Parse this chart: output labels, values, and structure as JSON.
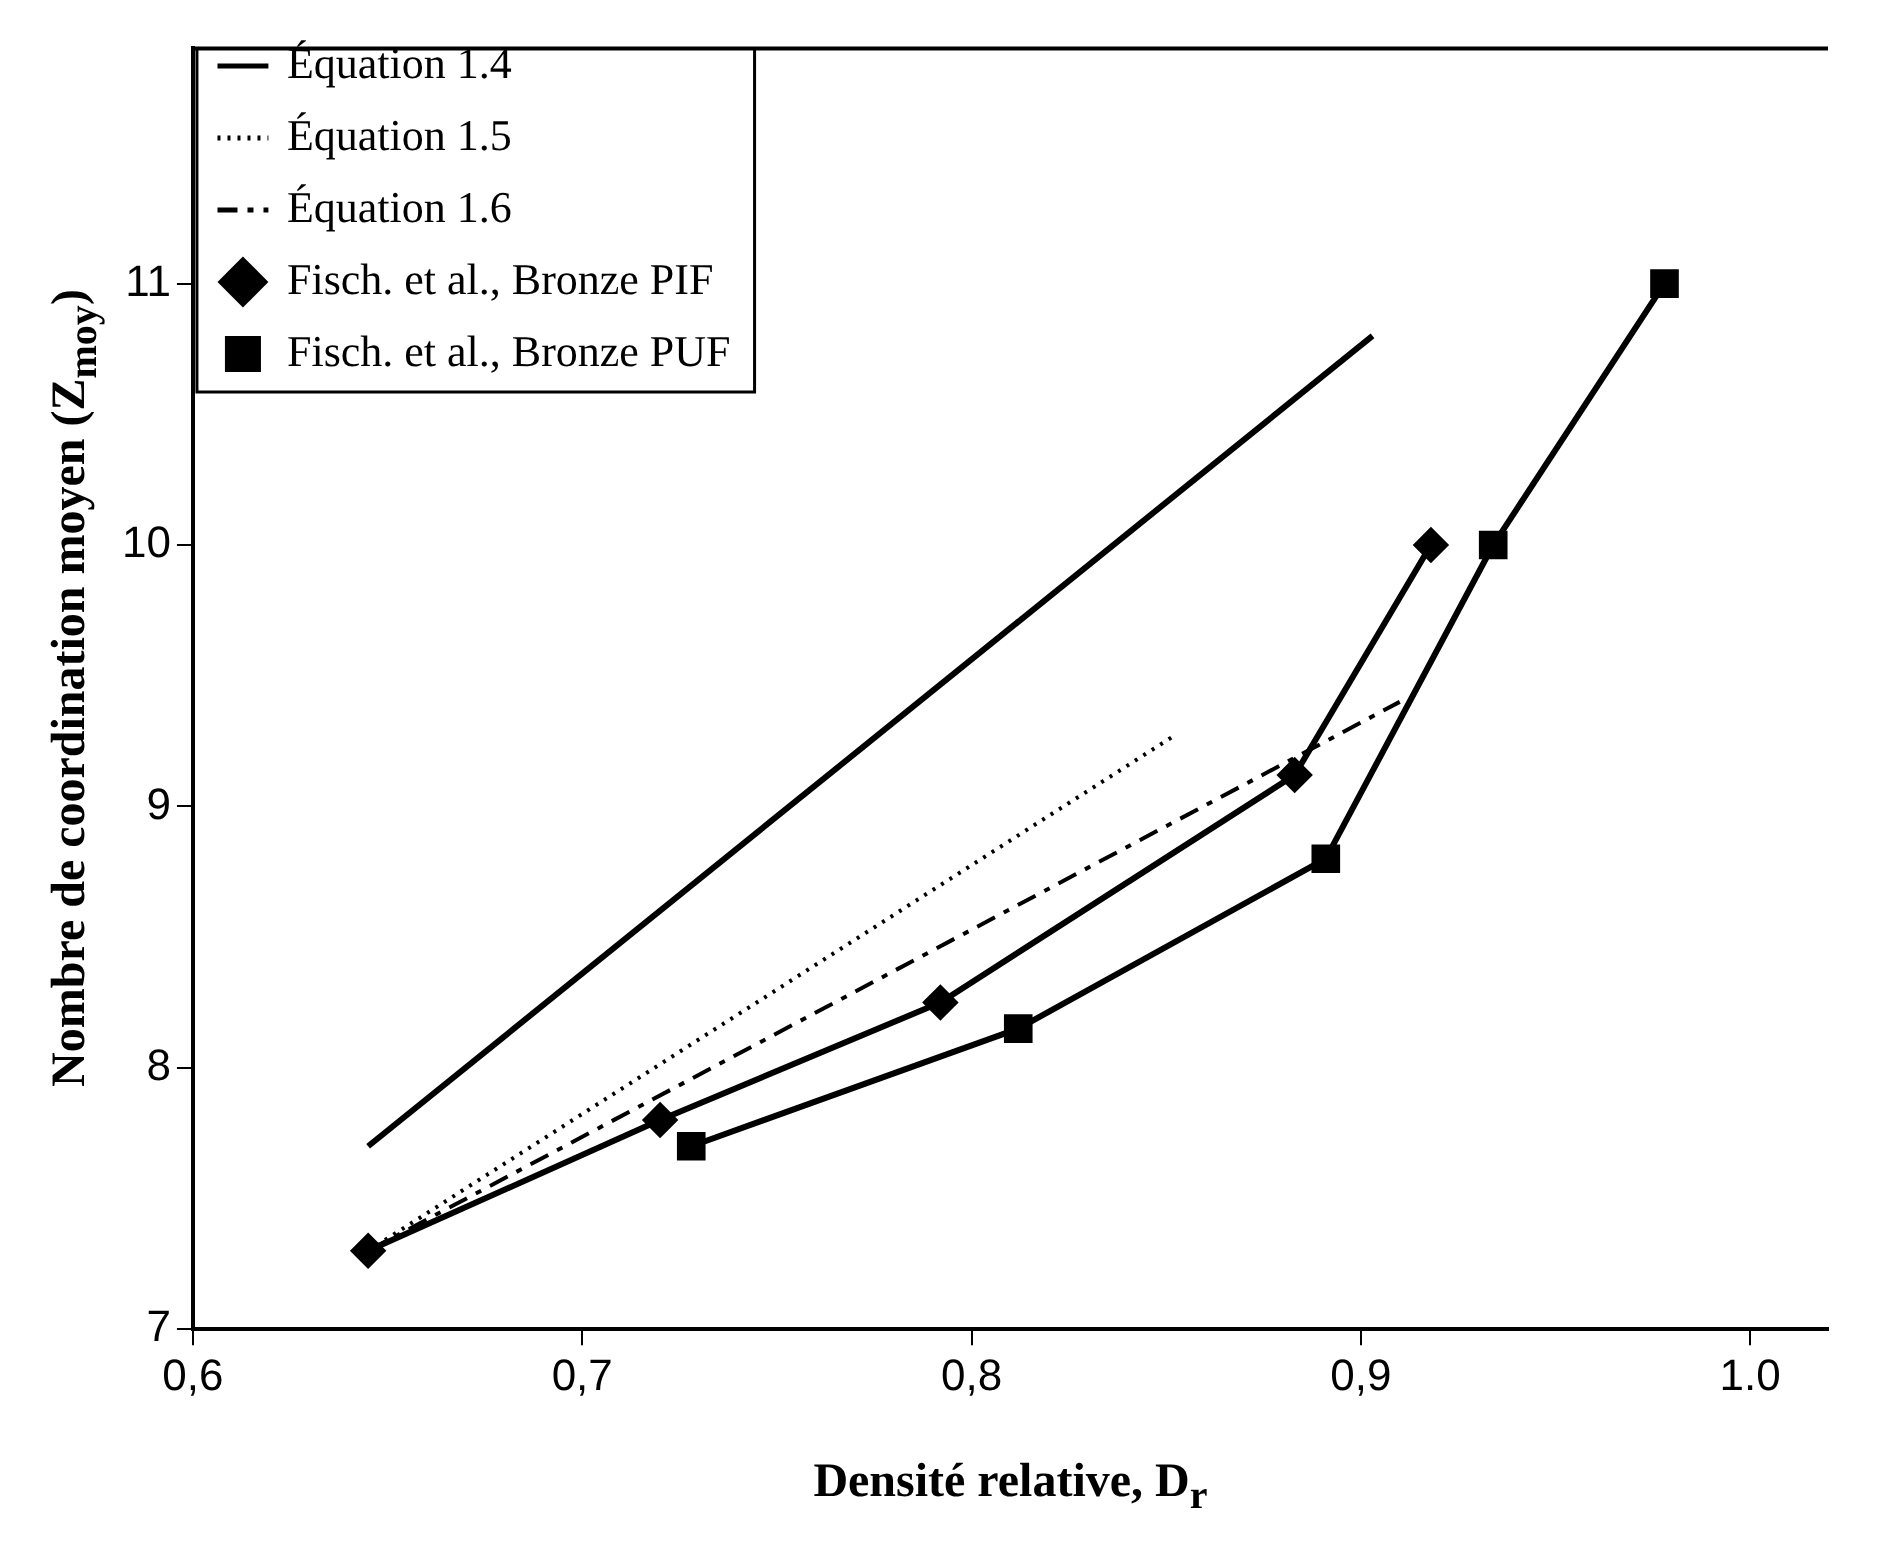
{
  "chart_data": {
    "type": "line",
    "xlabel": "Densité relative, D$_{r}$",
    "ylabel": "Nombre de coordination moyen (Z$_{moy}$)",
    "xlim": [
      0.6,
      1.02
    ],
    "ylim": [
      7,
      11.9
    ],
    "xticks": [
      {
        "value": 0.6,
        "label": "0,6"
      },
      {
        "value": 0.7,
        "label": "0,7"
      },
      {
        "value": 0.8,
        "label": "0,8"
      },
      {
        "value": 0.9,
        "label": "0,9"
      },
      {
        "value": 1.0,
        "label": "1.0"
      }
    ],
    "yticks": [
      7,
      8,
      9,
      10,
      11
    ],
    "grid": false,
    "legend": "top left",
    "series": [
      {
        "name": "Équation 1.4",
        "color": "#000000",
        "line_style": "solid",
        "marker": "none",
        "x": [
          0.645,
          0.903
        ],
        "values": [
          7.7,
          10.8
        ]
      },
      {
        "name": "Équation 1.5",
        "color": "#000000",
        "line_style": "dotted",
        "x": [
          0.645,
          0.852
        ],
        "values": [
          7.3,
          9.27
        ]
      },
      {
        "name": "Équation 1.6",
        "color": "#000000",
        "line_style": "dashed",
        "marker": "none",
        "x": [
          0.645,
          0.91
        ],
        "values": [
          7.3,
          9.4
        ]
      },
      {
        "name": "Fisch. et al., Bronze PIF",
        "color": "#000000",
        "line_style": "solid",
        "marker": "diamond",
        "x": [
          0.645,
          0.72,
          0.792,
          0.883,
          0.918
        ],
        "values": [
          7.3,
          7.8,
          8.25,
          9.12,
          10.0
        ]
      },
      {
        "name": "Fisch. et al., Bronze PUF",
        "color": "#000000",
        "line_style": "solid",
        "marker": "square",
        "x": [
          0.728,
          0.812,
          0.891,
          0.934,
          0.978
        ],
        "values": [
          7.7,
          8.15,
          8.8,
          10.0,
          11.0
        ]
      }
    ]
  }
}
